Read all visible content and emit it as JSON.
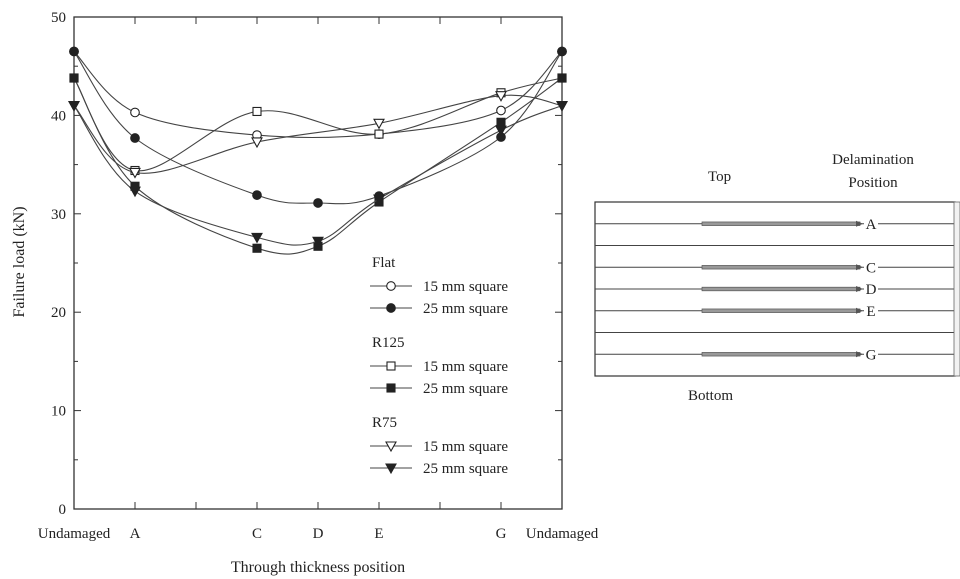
{
  "chart_data": {
    "type": "line",
    "categories": [
      "Undamaged",
      "A",
      "C",
      "D",
      "E",
      "G",
      "Undamaged"
    ],
    "category_positions": [
      0,
      1,
      3,
      4,
      5,
      7,
      8
    ],
    "ylabel": "Failure load (kN)",
    "xlabel": "Through thickness position",
    "ylim": [
      0,
      50
    ],
    "yticks": [
      "0",
      "10",
      "20",
      "30",
      "40",
      "50"
    ],
    "grid": false,
    "legend_placement": "center-right",
    "legend_groups": [
      {
        "title": "Flat",
        "entries": [
          0,
          1
        ]
      },
      {
        "title": "R125",
        "entries": [
          2,
          3
        ]
      },
      {
        "title": "R75",
        "entries": [
          4,
          5
        ]
      }
    ],
    "series": [
      {
        "name": "15 mm square",
        "marker": "circle-open",
        "values": [
          46.5,
          40.3,
          38.0,
          null,
          38.1,
          40.5,
          46.5
        ]
      },
      {
        "name": "25 mm square",
        "marker": "circle-filled",
        "values": [
          46.5,
          37.7,
          31.9,
          31.1,
          31.8,
          37.8,
          46.5
        ]
      },
      {
        "name": "15 mm square",
        "marker": "square-open",
        "values": [
          43.8,
          34.4,
          40.4,
          null,
          38.1,
          42.3,
          43.8
        ]
      },
      {
        "name": "25 mm square",
        "marker": "square-filled",
        "values": [
          43.8,
          32.8,
          26.5,
          26.7,
          31.2,
          39.3,
          43.8
        ]
      },
      {
        "name": "15 mm square",
        "marker": "tri-open",
        "values": [
          41.0,
          34.2,
          37.3,
          null,
          39.2,
          42.0,
          41.0
        ]
      },
      {
        "name": "25 mm square",
        "marker": "tri-filled",
        "values": [
          41.0,
          32.3,
          27.6,
          27.2,
          31.5,
          38.5,
          41.0
        ]
      }
    ]
  },
  "diagram": {
    "top_label": "Top",
    "bottom_label": "Bottom",
    "heading_line1": "Delamination",
    "heading_line2": "Position",
    "layers": 8,
    "delaminations": [
      {
        "label": "A",
        "layer": 1
      },
      {
        "label": "C",
        "layer": 3
      },
      {
        "label": "D",
        "layer": 4
      },
      {
        "label": "E",
        "layer": 5
      },
      {
        "label": "G",
        "layer": 7
      }
    ]
  }
}
